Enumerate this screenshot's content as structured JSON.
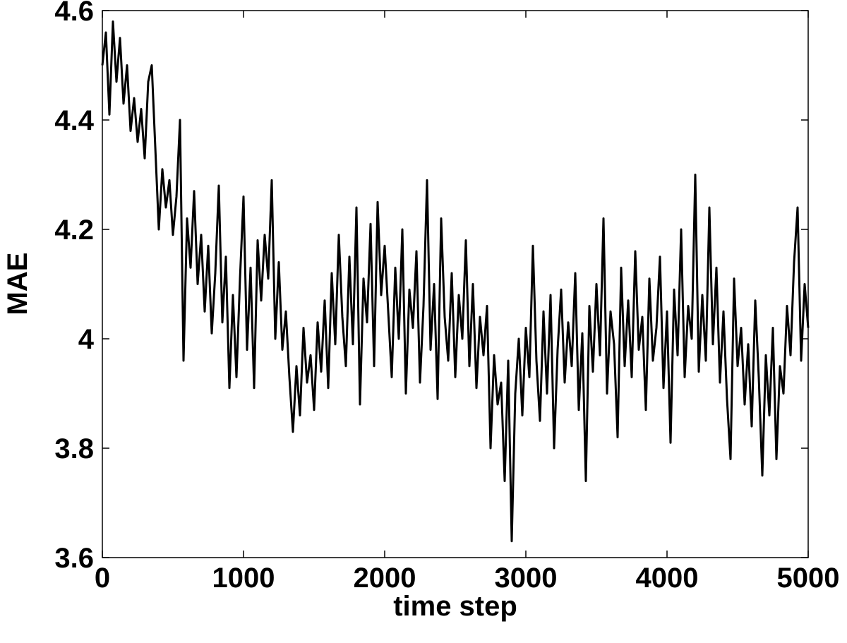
{
  "chart_data": {
    "type": "line",
    "xlabel": "time step",
    "ylabel": "MAE",
    "x": [
      0,
      25,
      50,
      75,
      100,
      125,
      150,
      175,
      200,
      225,
      250,
      275,
      300,
      325,
      350,
      375,
      400,
      425,
      450,
      475,
      500,
      525,
      550,
      575,
      600,
      625,
      650,
      675,
      700,
      725,
      750,
      775,
      800,
      825,
      850,
      875,
      900,
      925,
      950,
      975,
      1000,
      1025,
      1050,
      1075,
      1100,
      1125,
      1150,
      1175,
      1200,
      1225,
      1250,
      1275,
      1300,
      1325,
      1350,
      1375,
      1400,
      1425,
      1450,
      1475,
      1500,
      1525,
      1550,
      1575,
      1600,
      1625,
      1650,
      1675,
      1700,
      1725,
      1750,
      1775,
      1800,
      1825,
      1850,
      1875,
      1900,
      1925,
      1950,
      1975,
      2000,
      2025,
      2050,
      2075,
      2100,
      2125,
      2150,
      2175,
      2200,
      2225,
      2250,
      2275,
      2300,
      2325,
      2350,
      2375,
      2400,
      2425,
      2450,
      2475,
      2500,
      2525,
      2550,
      2575,
      2600,
      2625,
      2650,
      2675,
      2700,
      2725,
      2750,
      2775,
      2800,
      2825,
      2850,
      2875,
      2900,
      2925,
      2950,
      2975,
      3000,
      3025,
      3050,
      3075,
      3100,
      3125,
      3150,
      3175,
      3200,
      3225,
      3250,
      3275,
      3300,
      3325,
      3350,
      3375,
      3400,
      3425,
      3450,
      3475,
      3500,
      3525,
      3550,
      3575,
      3600,
      3625,
      3650,
      3675,
      3700,
      3725,
      3750,
      3775,
      3800,
      3825,
      3850,
      3875,
      3900,
      3925,
      3950,
      3975,
      4000,
      4025,
      4050,
      4075,
      4100,
      4125,
      4150,
      4175,
      4200,
      4225,
      4250,
      4275,
      4300,
      4325,
      4350,
      4375,
      4400,
      4425,
      4450,
      4475,
      4500,
      4525,
      4550,
      4575,
      4600,
      4625,
      4650,
      4675,
      4700,
      4725,
      4750,
      4775,
      4800,
      4825,
      4850,
      4875,
      4900,
      4925,
      4950,
      4975,
      5000
    ],
    "values": [
      4.5,
      4.56,
      4.41,
      4.58,
      4.47,
      4.55,
      4.43,
      4.5,
      4.38,
      4.44,
      4.36,
      4.42,
      4.33,
      4.47,
      4.5,
      4.35,
      4.2,
      4.31,
      4.24,
      4.29,
      4.19,
      4.26,
      4.4,
      3.96,
      4.22,
      4.13,
      4.27,
      4.1,
      4.19,
      4.05,
      4.17,
      4.01,
      4.12,
      4.28,
      4.03,
      4.15,
      3.91,
      4.08,
      3.93,
      4.11,
      4.26,
      3.98,
      4.13,
      3.91,
      4.18,
      4.07,
      4.19,
      4.11,
      4.29,
      4.0,
      4.14,
      3.98,
      4.05,
      3.93,
      3.83,
      3.95,
      3.86,
      4.02,
      3.92,
      3.97,
      3.87,
      4.03,
      3.94,
      4.07,
      3.91,
      4.12,
      3.99,
      4.19,
      4.04,
      3.95,
      4.15,
      3.99,
      4.24,
      3.88,
      4.11,
      4.03,
      4.21,
      3.95,
      4.25,
      4.08,
      4.17,
      4.05,
      3.93,
      4.13,
      4.0,
      4.2,
      3.9,
      4.09,
      4.02,
      4.16,
      3.92,
      4.06,
      4.29,
      3.98,
      4.1,
      3.89,
      4.22,
      4.04,
      3.96,
      4.12,
      3.93,
      4.08,
      4.0,
      4.18,
      3.95,
      4.1,
      3.91,
      4.04,
      3.97,
      4.06,
      3.8,
      3.97,
      3.88,
      3.92,
      3.74,
      3.96,
      3.63,
      3.9,
      4.0,
      3.86,
      4.02,
      3.93,
      4.17,
      3.96,
      3.85,
      4.05,
      3.9,
      4.08,
      3.8,
      3.98,
      4.09,
      3.92,
      4.03,
      3.95,
      4.12,
      3.87,
      4.01,
      3.74,
      4.06,
      3.94,
      4.1,
      3.97,
      4.22,
      3.9,
      4.05,
      3.99,
      3.82,
      4.13,
      3.95,
      4.07,
      3.93,
      4.16,
      3.98,
      4.04,
      3.87,
      4.11,
      3.96,
      4.02,
      4.15,
      3.91,
      4.05,
      3.81,
      4.09,
      3.97,
      4.2,
      3.93,
      4.06,
      4.0,
      4.3,
      3.94,
      4.08,
      3.96,
      4.24,
      3.99,
      4.13,
      3.92,
      4.05,
      3.89,
      3.78,
      4.11,
      3.95,
      4.02,
      3.88,
      3.99,
      3.84,
      4.07,
      3.93,
      3.75,
      3.97,
      3.86,
      4.02,
      3.78,
      3.95,
      3.9,
      4.06,
      3.97,
      4.14,
      4.24,
      3.96,
      4.1,
      4.02
    ],
    "color": "#000000",
    "xlim": [
      0,
      5000
    ],
    "xticks": [
      0,
      1000,
      2000,
      3000,
      4000,
      5000
    ],
    "ylim": [
      3.6,
      4.6
    ],
    "yticks": [
      3.6,
      3.8,
      4,
      4.2,
      4.4,
      4.6
    ],
    "grid": false
  }
}
